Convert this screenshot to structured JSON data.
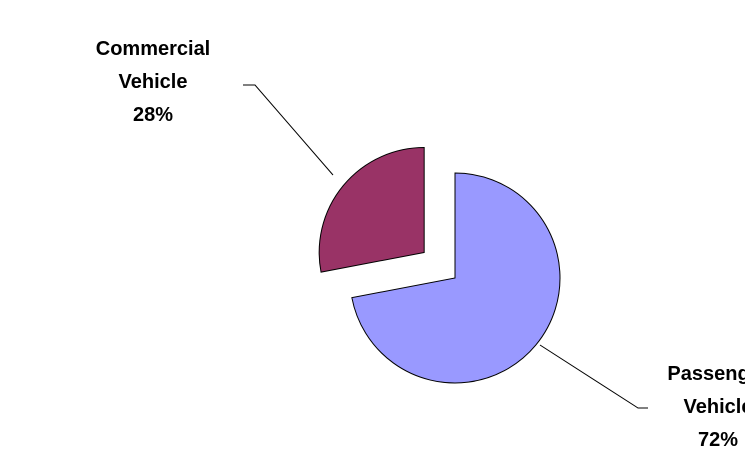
{
  "chart_data": {
    "type": "pie",
    "title": "",
    "slices": [
      {
        "label": "Passenger Vehicle",
        "label_lines": [
          "Passenger",
          "Vehicle",
          "72%"
        ],
        "value": 72,
        "percent_label": "72%",
        "color": "#9999FF",
        "exploded": false
      },
      {
        "label": "Commercial Vehicle",
        "label_lines": [
          "Commercial",
          "Vehicle",
          "28%"
        ],
        "value": 28,
        "percent_label": "28%",
        "color": "#993366",
        "exploded": true
      }
    ],
    "legend": "none",
    "start_angle_deg": 0,
    "direction": "clockwise"
  }
}
